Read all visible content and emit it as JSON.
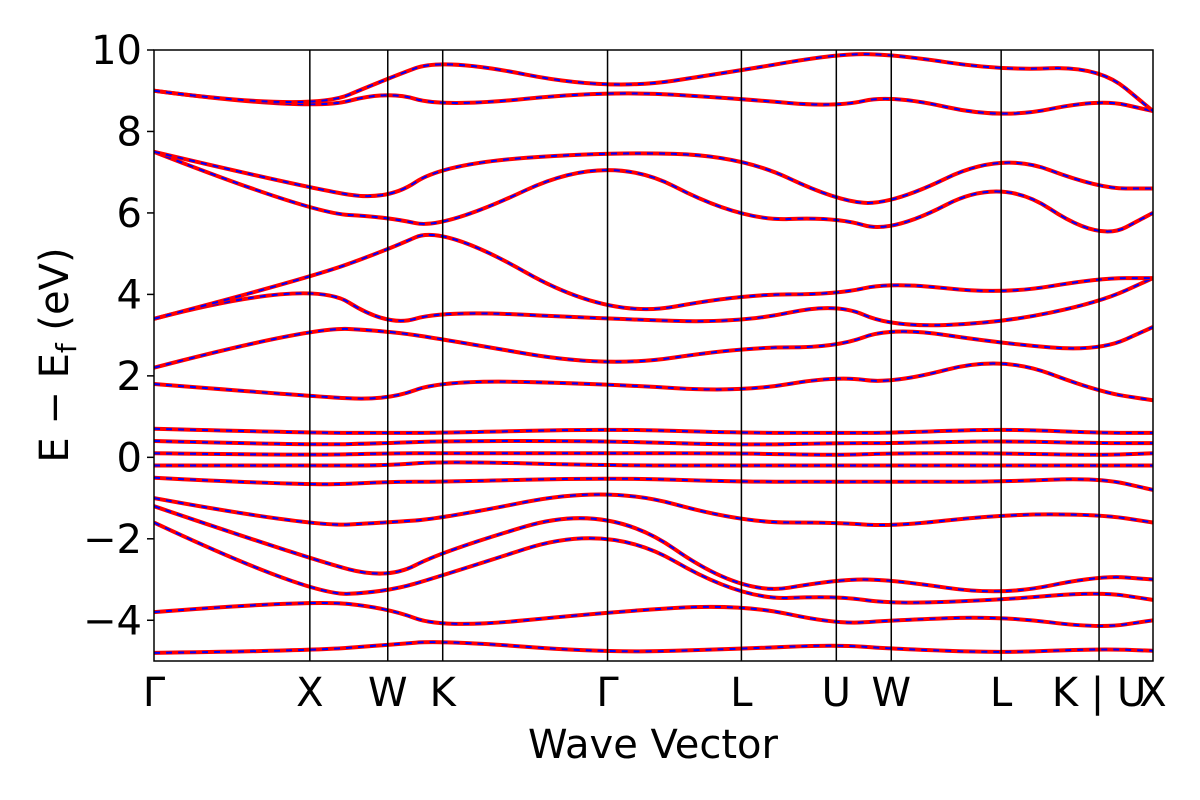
{
  "chart_data": {
    "type": "line",
    "xlabel": "Wave Vector",
    "ylabel": "E − E",
    "ylabel_sub": "f",
    "ylabel_unit": " (eV)",
    "ylim": [
      -5,
      10
    ],
    "yticks": [
      -4,
      -2,
      0,
      2,
      4,
      6,
      8,
      10
    ],
    "ytick_labels": [
      "−4",
      "−2",
      "0",
      "2",
      "4",
      "6",
      "8",
      "10"
    ],
    "xlim": [
      0,
      1
    ],
    "kpoints": [
      {
        "label": "Γ",
        "x": 0.0
      },
      {
        "label": "X",
        "x": 0.156
      },
      {
        "label": "W",
        "x": 0.234
      },
      {
        "label": "K",
        "x": 0.289
      },
      {
        "label": "Γ",
        "x": 0.454
      },
      {
        "label": "L",
        "x": 0.588
      },
      {
        "label": "U",
        "x": 0.683
      },
      {
        "label": "W",
        "x": 0.738
      },
      {
        "label": "L",
        "x": 0.848
      },
      {
        "label": "K | U",
        "x": 0.946
      },
      {
        "label": "X",
        "x": 1.0
      }
    ],
    "grid": false,
    "series_styles": [
      {
        "color": "#ff0000",
        "style": "solid"
      },
      {
        "color": "#0000ff",
        "style": "dashed"
      }
    ],
    "bands": [
      {
        "name": "b1",
        "points": [
          [
            0.0,
            -4.8
          ],
          [
            0.156,
            -4.75
          ],
          [
            0.234,
            -4.6
          ],
          [
            0.289,
            -4.5
          ],
          [
            0.454,
            -4.8
          ],
          [
            0.588,
            -4.7
          ],
          [
            0.683,
            -4.6
          ],
          [
            0.738,
            -4.7
          ],
          [
            0.848,
            -4.8
          ],
          [
            0.946,
            -4.7
          ],
          [
            1.0,
            -4.75
          ]
        ]
      },
      {
        "name": "b2",
        "points": [
          [
            0.0,
            -3.8
          ],
          [
            0.156,
            -3.5
          ],
          [
            0.234,
            -3.7
          ],
          [
            0.289,
            -4.2
          ],
          [
            0.454,
            -3.8
          ],
          [
            0.588,
            -3.6
          ],
          [
            0.683,
            -4.1
          ],
          [
            0.738,
            -4.0
          ],
          [
            0.848,
            -3.9
          ],
          [
            0.946,
            -4.2
          ],
          [
            1.0,
            -4.0
          ]
        ]
      },
      {
        "name": "b3",
        "points": [
          [
            0.0,
            -1.6
          ],
          [
            0.156,
            -3.4
          ],
          [
            0.234,
            -3.3
          ],
          [
            0.289,
            -2.9
          ],
          [
            0.454,
            -1.6
          ],
          [
            0.588,
            -3.5
          ],
          [
            0.683,
            -3.4
          ],
          [
            0.738,
            -3.6
          ],
          [
            0.848,
            -3.5
          ],
          [
            0.946,
            -3.3
          ],
          [
            1.0,
            -3.5
          ]
        ]
      },
      {
        "name": "b4",
        "points": [
          [
            0.0,
            -1.2
          ],
          [
            0.156,
            -2.5
          ],
          [
            0.234,
            -3.0
          ],
          [
            0.289,
            -2.3
          ],
          [
            0.454,
            -1.1
          ],
          [
            0.588,
            -3.4
          ],
          [
            0.683,
            -3.0
          ],
          [
            0.738,
            -3.0
          ],
          [
            0.848,
            -3.4
          ],
          [
            0.946,
            -2.9
          ],
          [
            1.0,
            -3.0
          ]
        ]
      },
      {
        "name": "b5",
        "points": [
          [
            0.0,
            -1.0
          ],
          [
            0.156,
            -1.7
          ],
          [
            0.234,
            -1.6
          ],
          [
            0.289,
            -1.5
          ],
          [
            0.454,
            -0.7
          ],
          [
            0.588,
            -1.6
          ],
          [
            0.683,
            -1.6
          ],
          [
            0.738,
            -1.7
          ],
          [
            0.848,
            -1.4
          ],
          [
            0.946,
            -1.4
          ],
          [
            1.0,
            -1.6
          ]
        ]
      },
      {
        "name": "b6",
        "points": [
          [
            0.0,
            -0.5
          ],
          [
            0.156,
            -0.7
          ],
          [
            0.234,
            -0.6
          ],
          [
            0.289,
            -0.6
          ],
          [
            0.454,
            -0.5
          ],
          [
            0.588,
            -0.6
          ],
          [
            0.683,
            -0.6
          ],
          [
            0.738,
            -0.6
          ],
          [
            0.848,
            -0.6
          ],
          [
            0.946,
            -0.5
          ],
          [
            1.0,
            -0.8
          ]
        ]
      },
      {
        "name": "b7",
        "points": [
          [
            0.0,
            -0.2
          ],
          [
            0.156,
            -0.2
          ],
          [
            0.234,
            -0.2
          ],
          [
            0.289,
            -0.1
          ],
          [
            0.454,
            -0.2
          ],
          [
            0.588,
            -0.2
          ],
          [
            0.683,
            -0.2
          ],
          [
            0.738,
            -0.2
          ],
          [
            0.848,
            -0.2
          ],
          [
            0.946,
            -0.2
          ],
          [
            1.0,
            -0.2
          ]
        ]
      },
      {
        "name": "b8",
        "points": [
          [
            0.0,
            0.1
          ],
          [
            0.156,
            0.05
          ],
          [
            0.234,
            0.1
          ],
          [
            0.289,
            0.1
          ],
          [
            0.454,
            0.1
          ],
          [
            0.588,
            0.1
          ],
          [
            0.683,
            0.05
          ],
          [
            0.738,
            0.1
          ],
          [
            0.848,
            0.1
          ],
          [
            0.946,
            0.05
          ],
          [
            1.0,
            0.1
          ]
        ]
      },
      {
        "name": "b9",
        "points": [
          [
            0.0,
            0.4
          ],
          [
            0.156,
            0.3
          ],
          [
            0.234,
            0.35
          ],
          [
            0.289,
            0.4
          ],
          [
            0.454,
            0.4
          ],
          [
            0.588,
            0.3
          ],
          [
            0.683,
            0.35
          ],
          [
            0.738,
            0.35
          ],
          [
            0.848,
            0.4
          ],
          [
            0.946,
            0.35
          ],
          [
            1.0,
            0.35
          ]
        ]
      },
      {
        "name": "b10",
        "points": [
          [
            0.0,
            0.7
          ],
          [
            0.156,
            0.6
          ],
          [
            0.234,
            0.6
          ],
          [
            0.289,
            0.6
          ],
          [
            0.454,
            0.7
          ],
          [
            0.588,
            0.6
          ],
          [
            0.683,
            0.6
          ],
          [
            0.738,
            0.6
          ],
          [
            0.848,
            0.7
          ],
          [
            0.946,
            0.6
          ],
          [
            1.0,
            0.6
          ]
        ]
      },
      {
        "name": "b11",
        "points": [
          [
            0.0,
            1.8
          ],
          [
            0.156,
            1.5
          ],
          [
            0.234,
            1.4
          ],
          [
            0.289,
            1.9
          ],
          [
            0.454,
            1.8
          ],
          [
            0.588,
            1.6
          ],
          [
            0.683,
            2.0
          ],
          [
            0.738,
            1.8
          ],
          [
            0.848,
            2.5
          ],
          [
            0.946,
            1.6
          ],
          [
            1.0,
            1.4
          ]
        ]
      },
      {
        "name": "b12",
        "points": [
          [
            0.0,
            2.2
          ],
          [
            0.156,
            3.2
          ],
          [
            0.234,
            3.1
          ],
          [
            0.289,
            2.9
          ],
          [
            0.454,
            2.2
          ],
          [
            0.588,
            2.7
          ],
          [
            0.683,
            2.7
          ],
          [
            0.738,
            3.2
          ],
          [
            0.848,
            2.8
          ],
          [
            0.946,
            2.6
          ],
          [
            1.0,
            3.2
          ]
        ]
      },
      {
        "name": "b13",
        "points": [
          [
            0.0,
            3.4
          ],
          [
            0.156,
            4.4
          ],
          [
            0.234,
            3.2
          ],
          [
            0.289,
            3.6
          ],
          [
            0.454,
            3.4
          ],
          [
            0.588,
            3.3
          ],
          [
            0.683,
            3.8
          ],
          [
            0.738,
            3.2
          ],
          [
            0.848,
            3.3
          ],
          [
            0.946,
            3.8
          ],
          [
            1.0,
            4.4
          ]
        ]
      },
      {
        "name": "b14",
        "points": [
          [
            0.0,
            3.4
          ],
          [
            0.156,
            4.4
          ],
          [
            0.234,
            5.1
          ],
          [
            0.289,
            5.7
          ],
          [
            0.454,
            3.4
          ],
          [
            0.588,
            4.0
          ],
          [
            0.683,
            4.0
          ],
          [
            0.738,
            4.3
          ],
          [
            0.848,
            4.0
          ],
          [
            0.946,
            4.4
          ],
          [
            1.0,
            4.4
          ]
        ]
      },
      {
        "name": "b15",
        "points": [
          [
            0.0,
            7.5
          ],
          [
            0.156,
            6.0
          ],
          [
            0.234,
            5.9
          ],
          [
            0.289,
            5.6
          ],
          [
            0.454,
            7.5
          ],
          [
            0.588,
            5.8
          ],
          [
            0.683,
            5.9
          ],
          [
            0.738,
            5.5
          ],
          [
            0.848,
            6.9
          ],
          [
            0.946,
            5.3
          ],
          [
            1.0,
            6.0
          ]
        ]
      },
      {
        "name": "b16",
        "points": [
          [
            0.0,
            7.5
          ],
          [
            0.156,
            6.6
          ],
          [
            0.234,
            6.3
          ],
          [
            0.289,
            7.2
          ],
          [
            0.454,
            7.5
          ],
          [
            0.588,
            7.4
          ],
          [
            0.683,
            6.3
          ],
          [
            0.738,
            6.2
          ],
          [
            0.848,
            7.5
          ],
          [
            0.946,
            6.6
          ],
          [
            1.0,
            6.6
          ]
        ]
      },
      {
        "name": "b17",
        "points": [
          [
            0.0,
            9.0
          ],
          [
            0.156,
            8.5
          ],
          [
            0.234,
            9.0
          ],
          [
            0.289,
            8.6
          ],
          [
            0.454,
            9.0
          ],
          [
            0.588,
            8.8
          ],
          [
            0.683,
            8.6
          ],
          [
            0.738,
            8.9
          ],
          [
            0.848,
            8.3
          ],
          [
            0.946,
            8.8
          ],
          [
            1.0,
            8.5
          ]
        ]
      },
      {
        "name": "b18",
        "points": [
          [
            0.0,
            9.0
          ],
          [
            0.156,
            8.5
          ],
          [
            0.234,
            9.3
          ],
          [
            0.289,
            9.8
          ],
          [
            0.454,
            9.0
          ],
          [
            0.588,
            9.5
          ],
          [
            0.683,
            9.9
          ],
          [
            0.738,
            9.9
          ],
          [
            0.848,
            9.5
          ],
          [
            0.946,
            9.6
          ],
          [
            1.0,
            8.5
          ]
        ]
      }
    ]
  }
}
